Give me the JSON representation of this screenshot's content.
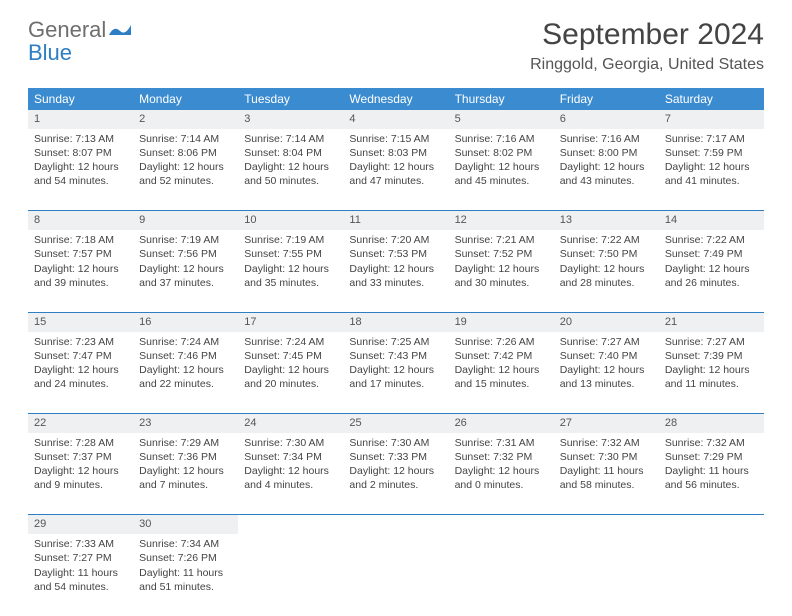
{
  "logo": {
    "general": "General",
    "blue": "Blue"
  },
  "title": "September 2024",
  "location": "Ringgold, Georgia, United States",
  "weekdays": [
    "Sunday",
    "Monday",
    "Tuesday",
    "Wednesday",
    "Thursday",
    "Friday",
    "Saturday"
  ],
  "colors": {
    "header_bg": "#3a8bcf",
    "header_text": "#ffffff",
    "daynum_bg": "#eef0f1",
    "border": "#2d7ec2",
    "logo_gray": "#6e6e6e",
    "logo_blue": "#2d7ec2"
  },
  "weeks": [
    [
      {
        "n": "1",
        "sr": "Sunrise: 7:13 AM",
        "ss": "Sunset: 8:07 PM",
        "dl": "Daylight: 12 hours and 54 minutes."
      },
      {
        "n": "2",
        "sr": "Sunrise: 7:14 AM",
        "ss": "Sunset: 8:06 PM",
        "dl": "Daylight: 12 hours and 52 minutes."
      },
      {
        "n": "3",
        "sr": "Sunrise: 7:14 AM",
        "ss": "Sunset: 8:04 PM",
        "dl": "Daylight: 12 hours and 50 minutes."
      },
      {
        "n": "4",
        "sr": "Sunrise: 7:15 AM",
        "ss": "Sunset: 8:03 PM",
        "dl": "Daylight: 12 hours and 47 minutes."
      },
      {
        "n": "5",
        "sr": "Sunrise: 7:16 AM",
        "ss": "Sunset: 8:02 PM",
        "dl": "Daylight: 12 hours and 45 minutes."
      },
      {
        "n": "6",
        "sr": "Sunrise: 7:16 AM",
        "ss": "Sunset: 8:00 PM",
        "dl": "Daylight: 12 hours and 43 minutes."
      },
      {
        "n": "7",
        "sr": "Sunrise: 7:17 AM",
        "ss": "Sunset: 7:59 PM",
        "dl": "Daylight: 12 hours and 41 minutes."
      }
    ],
    [
      {
        "n": "8",
        "sr": "Sunrise: 7:18 AM",
        "ss": "Sunset: 7:57 PM",
        "dl": "Daylight: 12 hours and 39 minutes."
      },
      {
        "n": "9",
        "sr": "Sunrise: 7:19 AM",
        "ss": "Sunset: 7:56 PM",
        "dl": "Daylight: 12 hours and 37 minutes."
      },
      {
        "n": "10",
        "sr": "Sunrise: 7:19 AM",
        "ss": "Sunset: 7:55 PM",
        "dl": "Daylight: 12 hours and 35 minutes."
      },
      {
        "n": "11",
        "sr": "Sunrise: 7:20 AM",
        "ss": "Sunset: 7:53 PM",
        "dl": "Daylight: 12 hours and 33 minutes."
      },
      {
        "n": "12",
        "sr": "Sunrise: 7:21 AM",
        "ss": "Sunset: 7:52 PM",
        "dl": "Daylight: 12 hours and 30 minutes."
      },
      {
        "n": "13",
        "sr": "Sunrise: 7:22 AM",
        "ss": "Sunset: 7:50 PM",
        "dl": "Daylight: 12 hours and 28 minutes."
      },
      {
        "n": "14",
        "sr": "Sunrise: 7:22 AM",
        "ss": "Sunset: 7:49 PM",
        "dl": "Daylight: 12 hours and 26 minutes."
      }
    ],
    [
      {
        "n": "15",
        "sr": "Sunrise: 7:23 AM",
        "ss": "Sunset: 7:47 PM",
        "dl": "Daylight: 12 hours and 24 minutes."
      },
      {
        "n": "16",
        "sr": "Sunrise: 7:24 AM",
        "ss": "Sunset: 7:46 PM",
        "dl": "Daylight: 12 hours and 22 minutes."
      },
      {
        "n": "17",
        "sr": "Sunrise: 7:24 AM",
        "ss": "Sunset: 7:45 PM",
        "dl": "Daylight: 12 hours and 20 minutes."
      },
      {
        "n": "18",
        "sr": "Sunrise: 7:25 AM",
        "ss": "Sunset: 7:43 PM",
        "dl": "Daylight: 12 hours and 17 minutes."
      },
      {
        "n": "19",
        "sr": "Sunrise: 7:26 AM",
        "ss": "Sunset: 7:42 PM",
        "dl": "Daylight: 12 hours and 15 minutes."
      },
      {
        "n": "20",
        "sr": "Sunrise: 7:27 AM",
        "ss": "Sunset: 7:40 PM",
        "dl": "Daylight: 12 hours and 13 minutes."
      },
      {
        "n": "21",
        "sr": "Sunrise: 7:27 AM",
        "ss": "Sunset: 7:39 PM",
        "dl": "Daylight: 12 hours and 11 minutes."
      }
    ],
    [
      {
        "n": "22",
        "sr": "Sunrise: 7:28 AM",
        "ss": "Sunset: 7:37 PM",
        "dl": "Daylight: 12 hours and 9 minutes."
      },
      {
        "n": "23",
        "sr": "Sunrise: 7:29 AM",
        "ss": "Sunset: 7:36 PM",
        "dl": "Daylight: 12 hours and 7 minutes."
      },
      {
        "n": "24",
        "sr": "Sunrise: 7:30 AM",
        "ss": "Sunset: 7:34 PM",
        "dl": "Daylight: 12 hours and 4 minutes."
      },
      {
        "n": "25",
        "sr": "Sunrise: 7:30 AM",
        "ss": "Sunset: 7:33 PM",
        "dl": "Daylight: 12 hours and 2 minutes."
      },
      {
        "n": "26",
        "sr": "Sunrise: 7:31 AM",
        "ss": "Sunset: 7:32 PM",
        "dl": "Daylight: 12 hours and 0 minutes."
      },
      {
        "n": "27",
        "sr": "Sunrise: 7:32 AM",
        "ss": "Sunset: 7:30 PM",
        "dl": "Daylight: 11 hours and 58 minutes."
      },
      {
        "n": "28",
        "sr": "Sunrise: 7:32 AM",
        "ss": "Sunset: 7:29 PM",
        "dl": "Daylight: 11 hours and 56 minutes."
      }
    ],
    [
      {
        "n": "29",
        "sr": "Sunrise: 7:33 AM",
        "ss": "Sunset: 7:27 PM",
        "dl": "Daylight: 11 hours and 54 minutes."
      },
      {
        "n": "30",
        "sr": "Sunrise: 7:34 AM",
        "ss": "Sunset: 7:26 PM",
        "dl": "Daylight: 11 hours and 51 minutes."
      },
      null,
      null,
      null,
      null,
      null
    ]
  ]
}
